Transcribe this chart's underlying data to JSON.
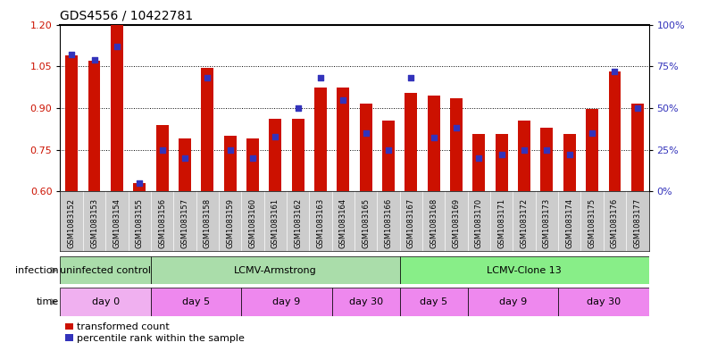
{
  "title": "GDS4556 / 10422781",
  "categories": [
    "GSM1083152",
    "GSM1083153",
    "GSM1083154",
    "GSM1083155",
    "GSM1083156",
    "GSM1083157",
    "GSM1083158",
    "GSM1083159",
    "GSM1083160",
    "GSM1083161",
    "GSM1083162",
    "GSM1083163",
    "GSM1083164",
    "GSM1083165",
    "GSM1083166",
    "GSM1083167",
    "GSM1083168",
    "GSM1083169",
    "GSM1083170",
    "GSM1083171",
    "GSM1083172",
    "GSM1083173",
    "GSM1083174",
    "GSM1083175",
    "GSM1083176",
    "GSM1083177"
  ],
  "red_values": [
    1.09,
    1.07,
    1.2,
    0.63,
    0.84,
    0.79,
    1.045,
    0.8,
    0.79,
    0.86,
    0.86,
    0.975,
    0.975,
    0.915,
    0.855,
    0.955,
    0.945,
    0.935,
    0.805,
    0.805,
    0.855,
    0.83,
    0.805,
    0.895,
    1.03,
    0.915
  ],
  "blue_values": [
    82,
    79,
    87,
    5,
    25,
    20,
    68,
    25,
    20,
    33,
    50,
    68,
    55,
    35,
    25,
    68,
    32,
    38,
    20,
    22,
    25,
    25,
    22,
    35,
    72,
    50
  ],
  "ylim_left": [
    0.6,
    1.2
  ],
  "ylim_right": [
    0,
    100
  ],
  "yticks_left": [
    0.6,
    0.75,
    0.9,
    1.05,
    1.2
  ],
  "yticks_right": [
    0,
    25,
    50,
    75,
    100
  ],
  "ytick_labels_right": [
    "0%",
    "25%",
    "50%",
    "75%",
    "100%"
  ],
  "bar_color": "#CC1100",
  "dot_color": "#3333BB",
  "baseline": 0.6,
  "xtick_bg": "#cccccc",
  "infection_groups": [
    {
      "label": "uninfected control",
      "start": 0,
      "end": 4,
      "color": "#aaddaa"
    },
    {
      "label": "LCMV-Armstrong",
      "start": 4,
      "end": 15,
      "color": "#aaddaa"
    },
    {
      "label": "LCMV-Clone 13",
      "start": 15,
      "end": 26,
      "color": "#88ee88"
    }
  ],
  "time_groups": [
    {
      "label": "day 0",
      "start": 0,
      "end": 4,
      "color": "#f0b0f0"
    },
    {
      "label": "day 5",
      "start": 4,
      "end": 8,
      "color": "#ee88ee"
    },
    {
      "label": "day 9",
      "start": 8,
      "end": 12,
      "color": "#ee88ee"
    },
    {
      "label": "day 30",
      "start": 12,
      "end": 15,
      "color": "#ee88ee"
    },
    {
      "label": "day 5",
      "start": 15,
      "end": 18,
      "color": "#ee88ee"
    },
    {
      "label": "day 9",
      "start": 18,
      "end": 22,
      "color": "#ee88ee"
    },
    {
      "label": "day 30",
      "start": 22,
      "end": 26,
      "color": "#ee88ee"
    }
  ],
  "legend_label_red": "transformed count",
  "legend_label_blue": "percentile rank within the sample",
  "inf_label": "infection",
  "time_label": "time"
}
